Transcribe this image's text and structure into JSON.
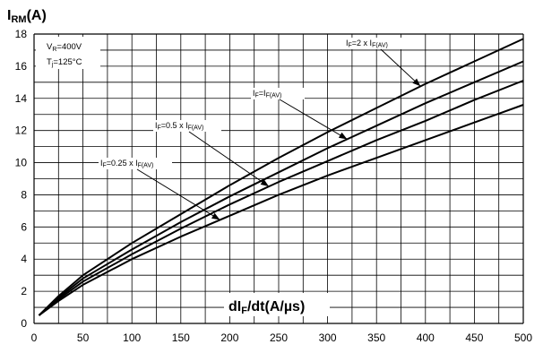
{
  "chart_data": {
    "type": "line",
    "ylabel_main": "I",
    "ylabel_sub": "RM",
    "ylabel_unit": "(A)",
    "xlabel_main": "dI",
    "xlabel_sub": "F",
    "xlabel_unit": "/dt(A/µs)",
    "xlim": [
      0,
      500
    ],
    "ylim": [
      0,
      18
    ],
    "xticks": [
      0,
      50,
      100,
      150,
      200,
      250,
      300,
      350,
      400,
      450,
      500
    ],
    "yticks": [
      0,
      2,
      4,
      6,
      8,
      10,
      12,
      14,
      16,
      18
    ],
    "grid": true,
    "conditions": [
      {
        "main": "V",
        "sub": "R",
        "rest": "=400V"
      },
      {
        "main": "T",
        "sub": "j",
        "rest": "=125°C"
      }
    ],
    "annotation_prefix": "I",
    "annotation_sub": "F",
    "series": [
      {
        "name": "IF=2 x IF(AV)",
        "label_eq": "=2 x I",
        "label_tail": "F(AV)",
        "x": [
          5,
          25,
          50,
          100,
          150,
          200,
          250,
          300,
          350,
          400,
          450,
          500
        ],
        "y": [
          0.5,
          1.7,
          3.0,
          5.0,
          6.8,
          8.6,
          10.3,
          11.9,
          13.4,
          14.9,
          16.3,
          17.7
        ]
      },
      {
        "name": "IF=IF(AV)",
        "label_eq": "=I",
        "label_tail": "F(AV)",
        "x": [
          5,
          25,
          50,
          100,
          150,
          200,
          250,
          300,
          350,
          400,
          450,
          500
        ],
        "y": [
          0.5,
          1.6,
          2.8,
          4.6,
          6.3,
          7.9,
          9.4,
          10.9,
          12.3,
          13.7,
          15.0,
          16.3
        ]
      },
      {
        "name": "IF=0.5 x IF(AV)",
        "label_eq": "=0.5 x I",
        "label_tail": "F(AV)",
        "x": [
          5,
          25,
          50,
          100,
          150,
          200,
          250,
          300,
          350,
          400,
          450,
          500
        ],
        "y": [
          0.5,
          1.5,
          2.6,
          4.3,
          5.9,
          7.4,
          8.8,
          10.1,
          11.4,
          12.6,
          13.9,
          15.1
        ]
      },
      {
        "name": "IF=0.25 x IF(AV)",
        "label_eq": "=0.25 x I",
        "label_tail": "F(AV)",
        "x": [
          5,
          25,
          50,
          100,
          150,
          200,
          250,
          300,
          350,
          400,
          450,
          500
        ],
        "y": [
          0.5,
          1.4,
          2.4,
          4.0,
          5.4,
          6.7,
          8.0,
          9.2,
          10.3,
          11.4,
          12.5,
          13.6
        ]
      }
    ]
  }
}
